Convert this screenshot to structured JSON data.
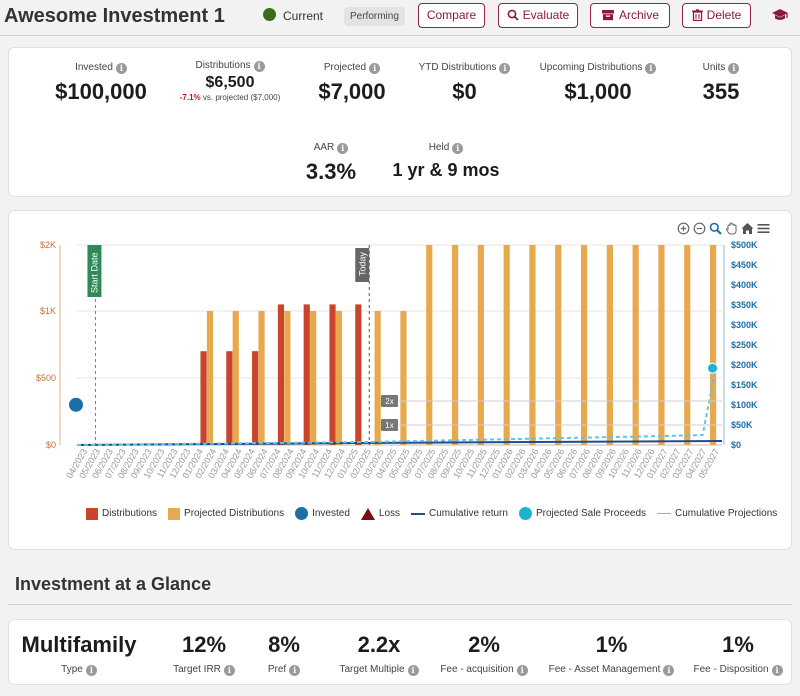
{
  "header": {
    "title": "Awesome Investment 1",
    "status": "Current",
    "badge": "Performing",
    "buttons": {
      "compare": "Compare",
      "evaluate": "Evaluate",
      "archive": "Archive",
      "delete": "Delete"
    },
    "colors": {
      "accent": "#8b1a3a",
      "status_dot": "#3b6b1f"
    }
  },
  "stats": {
    "invested": {
      "label": "Invested",
      "value": "$100,000"
    },
    "distributions": {
      "label": "Distributions",
      "value": "$6,500",
      "delta": "-7.1%",
      "delta_text": "vs. projected ($7,000)"
    },
    "projected": {
      "label": "Projected",
      "value": "$7,000"
    },
    "ytd": {
      "label": "YTD Distributions",
      "value": "$0"
    },
    "upcoming": {
      "label": "Upcoming Distributions",
      "value": "$1,000"
    },
    "units": {
      "label": "Units",
      "value": "355"
    },
    "aar": {
      "label": "AAR",
      "value": "3.3%"
    },
    "held": {
      "label": "Held",
      "value": "1 yr & 9 mos"
    }
  },
  "chart_data": {
    "type": "bar",
    "categories": [
      "04/2023",
      "05/2023",
      "06/2023",
      "07/2023",
      "08/2023",
      "09/2023",
      "10/2023",
      "11/2023",
      "12/2023",
      "01/2024",
      "02/2024",
      "03/2024",
      "04/2024",
      "05/2024",
      "06/2024",
      "07/2024",
      "08/2024",
      "09/2024",
      "10/2024",
      "11/2024",
      "12/2024",
      "01/2025",
      "02/2025",
      "03/2025",
      "04/2025",
      "05/2025",
      "06/2025",
      "07/2025",
      "08/2025",
      "09/2025",
      "10/2025",
      "11/2025",
      "12/2025",
      "01/2026",
      "02/2026",
      "03/2026",
      "04/2026",
      "05/2026",
      "06/2026",
      "07/2026",
      "08/2026",
      "09/2026",
      "10/2026",
      "11/2026",
      "12/2026",
      "01/2027",
      "02/2027",
      "03/2027",
      "04/2027",
      "05/2027"
    ],
    "series": [
      {
        "name": "Distributions",
        "color": "#c8442a",
        "axis": "left",
        "values": [
          0,
          0,
          0,
          0,
          0,
          0,
          0,
          0,
          0,
          700,
          0,
          700,
          0,
          700,
          0,
          1100,
          0,
          1100,
          0,
          1100,
          0,
          1100,
          0,
          0,
          0,
          0,
          0,
          0,
          0,
          0,
          0,
          0,
          0,
          0,
          0,
          0,
          0,
          0,
          0,
          0,
          0,
          0,
          0,
          0,
          0,
          0,
          0,
          0,
          0,
          0
        ]
      },
      {
        "name": "Projected Distributions",
        "color": "#e8a94e",
        "axis": "left",
        "values": [
          0,
          0,
          0,
          0,
          0,
          0,
          0,
          0,
          0,
          0,
          1000,
          0,
          1000,
          0,
          1000,
          0,
          1000,
          0,
          1000,
          0,
          1000,
          0,
          0,
          1000,
          0,
          1000,
          0,
          2000,
          0,
          2000,
          0,
          2000,
          0,
          2000,
          0,
          2000,
          0,
          2000,
          0,
          2000,
          0,
          2000,
          0,
          2000,
          0,
          2000,
          0,
          2000,
          0,
          2000
        ]
      },
      {
        "name": "Invested",
        "color": "#1a6fa8",
        "type": "point",
        "points": [
          {
            "x": "04/2023",
            "y": 300
          }
        ]
      },
      {
        "name": "Loss",
        "color": "#7a0f12",
        "type": "point",
        "points": []
      },
      {
        "name": "Cumulative return",
        "color": "#244a8f",
        "type": "line",
        "axis": "right"
      },
      {
        "name": "Projected Sale Proceeds",
        "color": "#1ab4d2",
        "type": "point",
        "axis": "right",
        "points": [
          {
            "x": "05/2027",
            "y": 192000
          }
        ]
      },
      {
        "name": "Cumulative Projections",
        "color": "#5ac8e0",
        "type": "line",
        "axis": "right"
      }
    ],
    "y_left": {
      "ticks": [
        "$0",
        "$500",
        "$1K",
        "$2K"
      ],
      "ticks_values": [
        0,
        500,
        1000,
        2000
      ],
      "color": "#c8703a"
    },
    "y_right": {
      "ticks": [
        "$0",
        "$50K",
        "$100K",
        "$150K",
        "$200K",
        "$250K",
        "$300K",
        "$350K",
        "$400K",
        "$450K",
        "$500K"
      ],
      "ylim": [
        0,
        500000
      ],
      "color": "#1a6fa8"
    },
    "markers": {
      "start": "Start Date",
      "today": "Today",
      "multiple_2x": "2x",
      "multiple_1x": "1x"
    }
  },
  "glance": {
    "title": "Investment at a Glance",
    "items": [
      {
        "value": "Multifamily",
        "label": "Type"
      },
      {
        "value": "12%",
        "label": "Target IRR"
      },
      {
        "value": "8%",
        "label": "Pref"
      },
      {
        "value": "2.2x",
        "label": "Target Multiple"
      },
      {
        "value": "2%",
        "label": "Fee - acquisition"
      },
      {
        "value": "1%",
        "label": "Fee - Asset Management"
      },
      {
        "value": "1%",
        "label": "Fee - Disposition"
      }
    ]
  }
}
